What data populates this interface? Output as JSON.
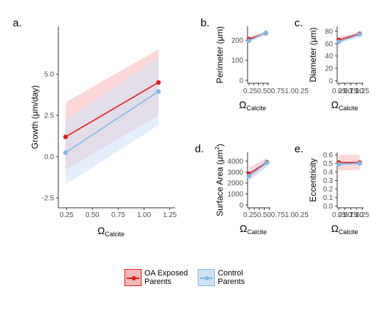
{
  "chart_data": [
    {
      "panel": "a.",
      "type": "line",
      "xlabel": "Ω",
      "xlabel_sub": "Calcite",
      "ylabel": "Growth (μm/day)",
      "xlim": [
        0.17,
        1.3
      ],
      "ylim": [
        -3.1,
        7.9
      ],
      "xticks": [
        "0.25",
        "0.50",
        "0.75",
        "1.00",
        "1.25"
      ],
      "yticks": [
        "-2.5",
        "0.0",
        "2.5",
        "5.0"
      ],
      "series": [
        {
          "name": "OA Exposed Parents",
          "color": "#e41a1c",
          "band": "#f7b7b7",
          "x": [
            0.24,
            1.14
          ],
          "y": [
            1.2,
            4.5
          ],
          "lo": [
            -0.8,
            2.5
          ],
          "hi": [
            3.3,
            6.5
          ]
        },
        {
          "name": "Control Parents",
          "color": "#7fb8e8",
          "band": "#cfe2f7",
          "x": [
            0.24,
            1.14
          ],
          "y": [
            0.25,
            3.95
          ],
          "lo": [
            -1.7,
            1.9
          ],
          "hi": [
            2.2,
            6.0
          ]
        }
      ]
    },
    {
      "panel": "b.",
      "type": "line",
      "xlabel": "Ω",
      "xlabel_sub": "Calcite",
      "ylabel": "Perimeter (μm)",
      "xlim": [
        0.17,
        1.3
      ],
      "ylim": [
        -15,
        270
      ],
      "xticks": [
        "0.25",
        "0.50",
        "0.75",
        "1.00",
        "1.25"
      ],
      "xtick_text": "0.250.500.751.00.25",
      "yticks": [
        "0",
        "100",
        "200"
      ],
      "series": [
        {
          "name": "OA Exposed Parents",
          "color": "#e41a1c",
          "band": "#f7b7b7",
          "x": [
            0.24,
            1.14
          ],
          "y": [
            206,
            236
          ],
          "lo": [
            196,
            226
          ],
          "hi": [
            216,
            246
          ]
        },
        {
          "name": "Control Parents",
          "color": "#7fb8e8",
          "band": "#cfe2f7",
          "x": [
            0.24,
            1.14
          ],
          "y": [
            198,
            238
          ],
          "lo": [
            188,
            228
          ],
          "hi": [
            208,
            248
          ]
        }
      ]
    },
    {
      "panel": "c.",
      "type": "line",
      "xlabel": "Ω",
      "xlabel_sub": "Calcite",
      "ylabel": "Diameter (μm)",
      "xlim": [
        0.17,
        1.3
      ],
      "ylim": [
        -4,
        88
      ],
      "xticks": [
        "0.25",
        "0.50",
        "0.75",
        "1.00",
        "1.25"
      ],
      "yticks": [
        "0",
        "20",
        "40",
        "60",
        "80"
      ],
      "series": [
        {
          "name": "OA Exposed Parents",
          "color": "#e41a1c",
          "band": "#f7b7b7",
          "x": [
            0.24,
            1.14
          ],
          "y": [
            66,
            76
          ],
          "lo": [
            62,
            72
          ],
          "hi": [
            70,
            80
          ]
        },
        {
          "name": "Control Parents",
          "color": "#7fb8e8",
          "band": "#cfe2f7",
          "x": [
            0.24,
            1.14
          ],
          "y": [
            63,
            75
          ],
          "lo": [
            59,
            71
          ],
          "hi": [
            67,
            79
          ]
        }
      ]
    },
    {
      "panel": "d.",
      "type": "line",
      "xlabel": "Ω",
      "xlabel_sub": "Calcite",
      "ylabel": "Surface Area (μm",
      "ylabel_sup": "2",
      "xlim": [
        0.17,
        1.3
      ],
      "ylim": [
        -250,
        4800
      ],
      "xticks": [
        "0.25",
        "0.50",
        "0.75",
        "1.00",
        "1.25"
      ],
      "xtick_text": "0.250.500.751.00.25",
      "yticks": [
        "0",
        "1000",
        "2000",
        "3000",
        "4000"
      ],
      "series": [
        {
          "name": "OA Exposed Parents",
          "color": "#e41a1c",
          "band": "#f7b7b7",
          "x": [
            0.24,
            1.14
          ],
          "y": [
            2850,
            3900
          ],
          "lo": [
            2300,
            3500
          ],
          "hi": [
            3400,
            4300
          ]
        },
        {
          "name": "Control Parents",
          "color": "#7fb8e8",
          "band": "#cfe2f7",
          "x": [
            0.24,
            1.14
          ],
          "y": [
            2650,
            3850
          ],
          "lo": [
            2200,
            3450
          ],
          "hi": [
            3100,
            4250
          ]
        }
      ]
    },
    {
      "panel": "e.",
      "type": "line",
      "xlabel": "Ω",
      "xlabel_sub": "Calcite",
      "ylabel": "Eccentricity",
      "xlim": [
        0.17,
        1.3
      ],
      "ylim": [
        -0.02,
        0.63
      ],
      "xticks": [
        "0.25",
        "0.50",
        "0.75",
        "1.00",
        "1.25"
      ],
      "yticks": [
        "0.0",
        "0.1",
        "0.2",
        "0.3",
        "0.4",
        "0.5",
        "0.6"
      ],
      "series": [
        {
          "name": "OA Exposed Parents",
          "color": "#e41a1c",
          "band": "#f7b7b7",
          "x": [
            0.24,
            1.14
          ],
          "y": [
            0.51,
            0.51
          ],
          "lo": [
            0.42,
            0.42
          ],
          "hi": [
            0.6,
            0.6
          ]
        },
        {
          "name": "Control Parents",
          "color": "#7fb8e8",
          "band": "#cfe2f7",
          "x": [
            0.24,
            1.14
          ],
          "y": [
            0.49,
            0.5
          ],
          "lo": [
            0.47,
            0.48
          ],
          "hi": [
            0.52,
            0.52
          ]
        }
      ]
    }
  ],
  "legend": {
    "items": [
      {
        "label": "OA Exposed\nParents",
        "color": "#e41a1c",
        "fill": "#f7b7b7"
      },
      {
        "label": "Control\nParents",
        "color": "#7fb8e8",
        "fill": "#cfe2f7"
      }
    ]
  }
}
